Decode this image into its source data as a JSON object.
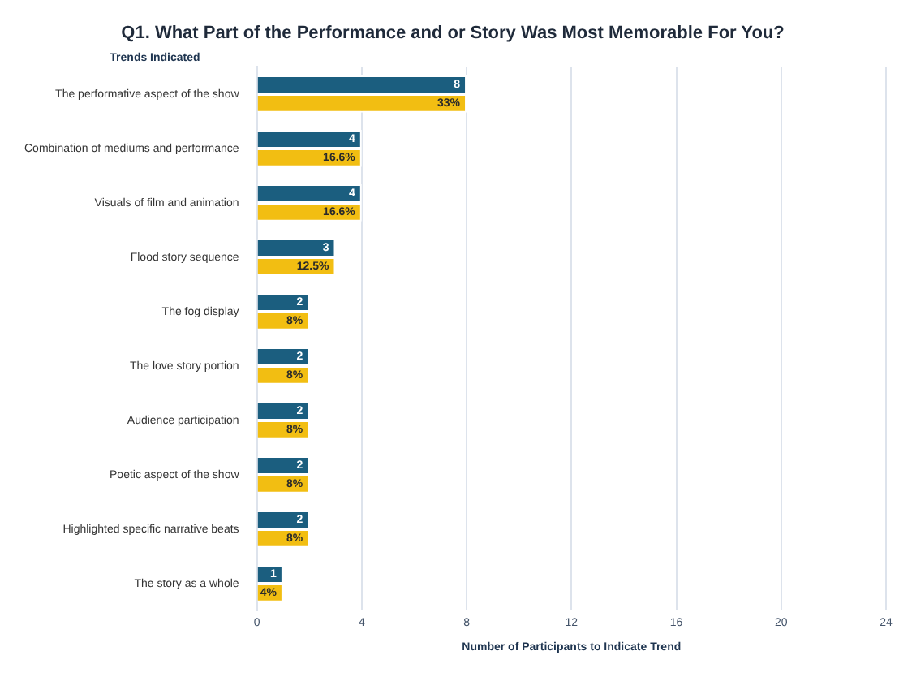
{
  "chart_data": {
    "type": "bar",
    "orientation": "horizontal",
    "title": "Q1. What Part of the Performance and or Story Was Most Memorable For You?",
    "ylabel": "Trends Indicated",
    "xlabel": "Number of Participants to Indicate Trend",
    "categories": [
      "The performative aspect of the show",
      "Combination of mediums and performance",
      "Visuals of film and animation",
      "Flood story sequence",
      "The fog display",
      "The love story portion",
      "Audience participation",
      "Poetic aspect of the show",
      "Highlighted specific narrative beats",
      "The story as a whole"
    ],
    "series": [
      {
        "color": "#1b5e7f",
        "values": [
          8,
          4,
          4,
          3,
          2,
          2,
          2,
          2,
          2,
          1
        ],
        "value_labels": [
          "8",
          "4",
          "4",
          "3",
          "2",
          "2",
          "2",
          "2",
          "2",
          "1"
        ]
      },
      {
        "color": "#f2be12",
        "values": [
          8,
          4,
          4,
          3,
          2,
          2,
          2,
          2,
          2,
          1
        ]
      }
    ],
    "annotations": [
      {
        "text": "33%",
        "x": 8,
        "y": "The performative aspect of the show"
      },
      {
        "text": "16.6%",
        "x": 4,
        "y": "Combination of mediums and performance"
      },
      {
        "text": "16.6%",
        "x": 4,
        "y": "Visuals of film and animation"
      },
      {
        "text": "12.5%",
        "x": 3,
        "y": "Flood story sequence"
      },
      {
        "text": "8%",
        "x": 2,
        "y": "The fog display"
      },
      {
        "text": "8%",
        "x": 2,
        "y": "The love story portion"
      },
      {
        "text": "8%",
        "x": 2,
        "y": "Audience participation"
      },
      {
        "text": "8%",
        "x": 2,
        "y": "Poetic aspect of the show"
      },
      {
        "text": "8%",
        "x": 2,
        "y": "Highlighted specific narrative beats"
      },
      {
        "text": "4%",
        "x": 1,
        "y": "The story as a whole"
      }
    ],
    "xlim": [
      0,
      24
    ],
    "xticks": [
      0,
      4,
      8,
      12,
      16,
      20,
      24
    ],
    "grid": "x",
    "legend": false
  }
}
